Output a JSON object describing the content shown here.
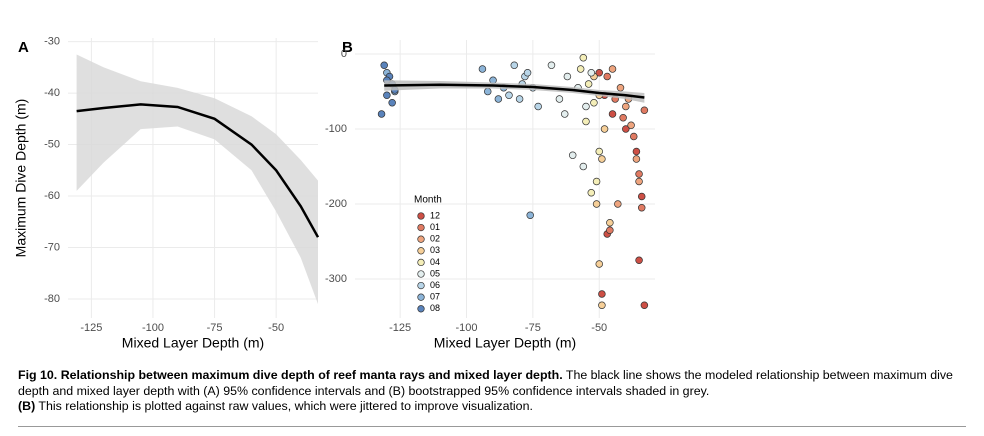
{
  "chart_data": [
    {
      "type": "line",
      "panel_label": "A",
      "x_label": "Mixed Layer Depth (m)",
      "y_label": "Maximum Dive Depth (m)",
      "x": [
        -131,
        -120,
        -105,
        -90,
        -75,
        -60,
        -50,
        -40,
        -33
      ],
      "values": [
        -43.5,
        -42.9,
        -42.2,
        -42.7,
        -45,
        -50,
        -55,
        -62,
        -68
      ],
      "lower": [
        -59,
        -53.5,
        -47,
        -46.5,
        -49,
        -55,
        -63,
        -72,
        -81
      ],
      "upper": [
        -32.5,
        -35,
        -37.7,
        -39,
        -41,
        -44.5,
        -48,
        -53,
        -57
      ],
      "color": "#000000",
      "band_color": "#d9d9d9",
      "xlim": [
        -134.5,
        -33
      ],
      "ylim": [
        -83.7,
        -29.3
      ],
      "xticks": [
        -125,
        -100,
        -75,
        -50
      ],
      "yticks": [
        -30,
        -40,
        -50,
        -60,
        -70,
        -80
      ],
      "grid": true
    },
    {
      "type": "scatter",
      "panel_label": "B",
      "x_label": "Mixed Layer Depth (m)",
      "legend_title": "Month",
      "series": [
        {
          "name": "12",
          "color": "#cd4f45",
          "x": [
            -50,
            -48,
            -45,
            -40,
            -36,
            -34,
            -49,
            -35,
            -33,
            -47
          ],
          "values": [
            -25,
            -55,
            -80,
            -100,
            -130,
            -190,
            -320,
            -275,
            -335,
            -240
          ]
        },
        {
          "name": "01",
          "color": "#e07a62",
          "x": [
            -47,
            -44,
            -41,
            -37,
            -35,
            -34,
            -46,
            -33
          ],
          "values": [
            -30,
            -60,
            -85,
            -110,
            -160,
            -205,
            -235,
            -75
          ]
        },
        {
          "name": "02",
          "color": "#eea47e",
          "x": [
            -45,
            -42,
            -40,
            -38,
            -36,
            -35,
            -43,
            -39
          ],
          "values": [
            -20,
            -45,
            -70,
            -95,
            -140,
            -170,
            -200,
            -60
          ]
        },
        {
          "name": "03",
          "color": "#f6cf98",
          "x": [
            -52,
            -50,
            -48,
            -49,
            -51,
            -46,
            -50,
            -49
          ],
          "values": [
            -30,
            -55,
            -100,
            -140,
            -200,
            -225,
            -280,
            -335
          ]
        },
        {
          "name": "04",
          "color": "#f4eeb8",
          "x": [
            -57,
            -54,
            -52,
            -55,
            -50,
            -53,
            -51,
            -56
          ],
          "values": [
            -20,
            -40,
            -65,
            -90,
            -130,
            -185,
            -170,
            -5
          ]
        },
        {
          "name": "05",
          "color": "#e3eeee",
          "x": [
            -68,
            -62,
            -58,
            -65,
            -55,
            -60,
            -56,
            -53,
            -63
          ],
          "values": [
            -15,
            -30,
            -45,
            -60,
            -70,
            -135,
            -150,
            -25,
            -80
          ]
        },
        {
          "name": "06",
          "color": "#b8d5e8",
          "x": [
            -82,
            -78,
            -75,
            -80,
            -73,
            -77,
            -84,
            -79
          ],
          "values": [
            -15,
            -30,
            -45,
            -60,
            -70,
            -25,
            -55,
            -40
          ]
        },
        {
          "name": "07",
          "color": "#8cb4d8",
          "x": [
            -94,
            -90,
            -86,
            -92,
            -88,
            -130,
            -127,
            -76
          ],
          "values": [
            -20,
            -35,
            -45,
            -50,
            -60,
            -25,
            -50,
            -215
          ]
        },
        {
          "name": "08",
          "color": "#5a83bb",
          "x": [
            -131,
            -129,
            -128,
            -130,
            -127,
            -132,
            -128,
            -130
          ],
          "values": [
            -15,
            -30,
            -40,
            -55,
            -48,
            -80,
            -65,
            -35
          ]
        }
      ],
      "fit": {
        "x": [
          -131,
          -110,
          -90,
          -75,
          -60,
          -50,
          -40,
          -33
        ],
        "values": [
          -42,
          -41,
          -42,
          -44,
          -48,
          -52,
          -55,
          -58
        ],
        "lower": [
          -49,
          -46,
          -46,
          -48,
          -52,
          -56,
          -60,
          -65
        ],
        "upper": [
          -35,
          -36,
          -38,
          -40,
          -44,
          -48,
          -50,
          -52
        ],
        "color": "#000000",
        "band_color": "#bdbdbd"
      },
      "xlim": [
        -142,
        -29
      ],
      "ylim": [
        -352,
        18.7
      ],
      "xticks": [
        -125,
        -100,
        -75,
        -50
      ],
      "yticks": [
        0,
        -100,
        -200,
        -300
      ],
      "grid": true
    }
  ],
  "caption": {
    "title": "Fig 10.  Relationship between maximum dive depth of reef manta rays and mixed layer depth.",
    "text": " The black line shows the modeled relationship between maximum dive depth and mixed layer depth with (A) 95% confidence intervals and (B) bootstrapped 95% confidence intervals shaded in grey.",
    "b_label": "(B)",
    "b_text": " This relationship is plotted against raw values, which were jittered to improve visualization."
  }
}
